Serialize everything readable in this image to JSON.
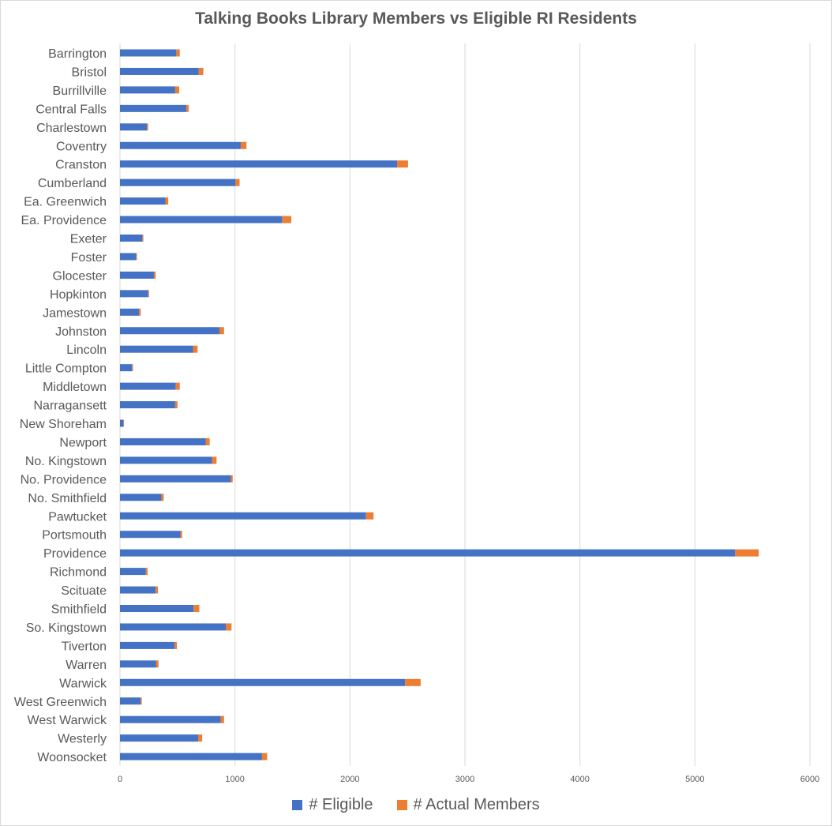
{
  "chart_data": {
    "type": "bar",
    "orientation": "horizontal",
    "stacked": true,
    "title": "Talking Books Library Members vs Eligible RI Residents",
    "xlabel": "",
    "ylabel": "",
    "xlim": [
      0,
      6000
    ],
    "xticks": [
      0,
      1000,
      2000,
      3000,
      4000,
      5000,
      6000
    ],
    "grid": true,
    "legend_position": "bottom",
    "categories": [
      "Barrington",
      "Bristol",
      "Burrillville",
      "Central Falls",
      "Charlestown",
      "Coventry",
      "Cranston",
      "Cumberland",
      "Ea. Greenwich",
      "Ea. Providence",
      "Exeter",
      "Foster",
      "Glocester",
      "Hopkinton",
      "Jamestown",
      "Johnston",
      "Lincoln",
      "Little Compton",
      "Middletown",
      "Narragansett",
      "New Shoreham",
      "Newport",
      "No. Kingstown",
      "No. Providence",
      "No. Smithfield",
      "Pawtucket",
      "Portsmouth",
      "Providence",
      "Richmond",
      "Scituate",
      "Smithfield",
      "So. Kingstown",
      "Tiverton",
      "Warren",
      "Warwick",
      "West Greenwich",
      "West Warwick",
      "Westerly",
      "Woonsocket"
    ],
    "series": [
      {
        "name": "# Eligible",
        "color": "#4472c4",
        "values": [
          490,
          685,
          480,
          578,
          235,
          1050,
          2410,
          1005,
          395,
          1410,
          195,
          140,
          295,
          245,
          165,
          865,
          635,
          105,
          485,
          480,
          30,
          745,
          800,
          965,
          360,
          2140,
          525,
          5350,
          225,
          310,
          640,
          920,
          475,
          315,
          2480,
          180,
          875,
          680,
          1235
        ]
      },
      {
        "name": "# Actual Members",
        "color": "#ed7d31",
        "values": [
          30,
          40,
          35,
          20,
          10,
          50,
          95,
          35,
          25,
          80,
          8,
          8,
          15,
          8,
          15,
          40,
          40,
          8,
          35,
          20,
          5,
          35,
          40,
          15,
          20,
          65,
          15,
          205,
          15,
          20,
          50,
          50,
          20,
          20,
          135,
          10,
          30,
          35,
          45
        ]
      }
    ]
  }
}
